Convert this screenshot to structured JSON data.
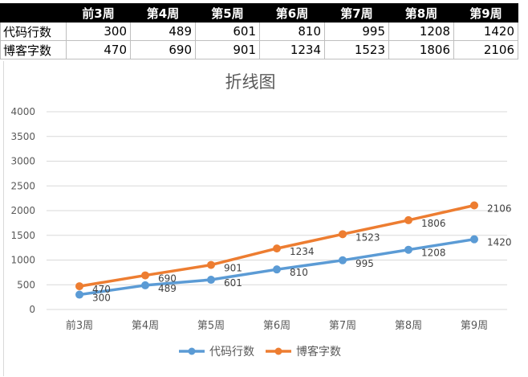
{
  "table": {
    "header": [
      "",
      "前3周",
      "第4周",
      "第5周",
      "第6周",
      "第7周",
      "第8周",
      "第9周"
    ],
    "rows": [
      {
        "label": "代码行数",
        "values": [
          "300",
          "489",
          "601",
          "810",
          "995",
          "1208",
          "1420"
        ]
      },
      {
        "label": "博客字数",
        "values": [
          "470",
          "690",
          "901",
          "1234",
          "1523",
          "1806",
          "2106"
        ]
      }
    ]
  },
  "colors": {
    "series1": "#5b9bd5",
    "series2": "#ed7d31",
    "grid": "#d9d9d9",
    "text": "#595959",
    "title": "#595959"
  },
  "chart_data": {
    "type": "line",
    "title": "折线图",
    "categories": [
      "前3周",
      "第4周",
      "第5周",
      "第6周",
      "第7周",
      "第8周",
      "第9周"
    ],
    "series": [
      {
        "name": "代码行数",
        "values": [
          300,
          489,
          601,
          810,
          995,
          1208,
          1420
        ]
      },
      {
        "name": "博客字数",
        "values": [
          470,
          690,
          901,
          1234,
          1523,
          1806,
          2106
        ]
      }
    ],
    "yticks": [
      "0",
      "500",
      "1000",
      "1500",
      "2000",
      "2500",
      "3000",
      "3500",
      "4000"
    ],
    "ylim": [
      0,
      4000
    ],
    "grid": true,
    "legend": "bottom"
  }
}
